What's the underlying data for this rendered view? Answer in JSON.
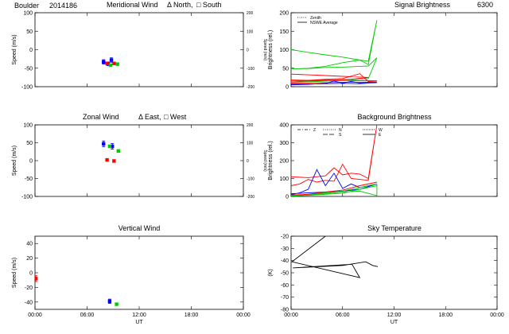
{
  "header": {
    "site": "Boulder",
    "date_code": "2014186"
  },
  "chart_data": [
    {
      "id": "meridional",
      "type": "scatter",
      "title": "Meridional Wind",
      "legend_items": [
        "Δ North,",
        "□ South"
      ],
      "ylabel": "Speed (m/s)",
      "ylim": [
        -100,
        100
      ],
      "yticks": [
        -100,
        -50,
        0,
        50,
        100
      ],
      "right_ylabel": "Speed (m/s)",
      "right_ticks": [
        "200",
        "100",
        "0",
        "-100",
        "-200"
      ],
      "series": [
        {
          "color": "#0000ff",
          "points": [
            {
              "x": 7.9,
              "y": -33,
              "err": 6
            },
            {
              "x": 8.4,
              "y": -38,
              "err": 5
            },
            {
              "x": 8.8,
              "y": -28,
              "err": 6
            }
          ]
        },
        {
          "color": "#ff0000",
          "points": [
            {
              "x": 8.3,
              "y": -37
            },
            {
              "x": 9.1,
              "y": -37
            }
          ]
        },
        {
          "color": "#00cc00",
          "points": [
            {
              "x": 8.7,
              "y": -42
            },
            {
              "x": 9.5,
              "y": -39
            }
          ]
        }
      ]
    },
    {
      "id": "zonal",
      "type": "scatter",
      "title": "Zonal Wind",
      "legend_items": [
        "Δ East,",
        "□ West"
      ],
      "ylabel": "Speed (m/s)",
      "ylim": [
        -100,
        100
      ],
      "yticks": [
        -100,
        -50,
        0,
        50,
        100
      ],
      "right_ylabel": "Speed (m/s)",
      "right_ticks": [
        "200",
        "100",
        "0",
        "-100",
        "-200"
      ],
      "series": [
        {
          "color": "#0000ff",
          "points": [
            {
              "x": 7.9,
              "y": 47,
              "err": 8
            },
            {
              "x": 8.9,
              "y": 40,
              "err": 8
            }
          ]
        },
        {
          "color": "#ff0000",
          "points": [
            {
              "x": 8.3,
              "y": 2
            },
            {
              "x": 9.1,
              "y": -1
            }
          ]
        },
        {
          "color": "#00cc00",
          "points": [
            {
              "x": 8.6,
              "y": 40
            },
            {
              "x": 9.6,
              "y": 27
            }
          ]
        }
      ]
    },
    {
      "id": "vertical",
      "type": "scatter",
      "title": "Vertical Wind",
      "ylabel": "Speed (m/s)",
      "ylim": [
        -50,
        50
      ],
      "yticks": [
        -40,
        -20,
        0,
        20,
        40
      ],
      "xlabel": "UT",
      "xticks": [
        "00:00",
        "06:00",
        "12:00",
        "18:00",
        "00:00"
      ],
      "series": [
        {
          "color": "#ff0000",
          "points": [
            {
              "x": 0.1,
              "y": -8,
              "err": 4
            }
          ]
        },
        {
          "color": "#0000ff",
          "points": [
            {
              "x": 8.6,
              "y": -39,
              "err": 3
            }
          ]
        },
        {
          "color": "#00cc00",
          "points": [
            {
              "x": 9.4,
              "y": -43
            }
          ]
        }
      ]
    },
    {
      "id": "signal",
      "type": "line",
      "title": "Signal Brightness",
      "title_right": "6300",
      "ylabel": "Brightness (rel.)",
      "ylim": [
        0,
        200
      ],
      "yticks": [
        0,
        50,
        100,
        150,
        200
      ],
      "legend": [
        "Zenith",
        "NSWE Average"
      ],
      "series": [
        {
          "color": "#00cc00",
          "points": [
            [
              0,
              100
            ],
            [
              2,
              93
            ],
            [
              4,
              86
            ],
            [
              6,
              80
            ],
            [
              8,
              72
            ],
            [
              9,
              69
            ],
            [
              10,
              180
            ],
            [
              9,
              60
            ],
            [
              8,
              72
            ],
            [
              6,
              65
            ],
            [
              4,
              55
            ],
            [
              2,
              50
            ],
            [
              0,
              48
            ],
            [
              2,
              49
            ],
            [
              4,
              52
            ],
            [
              6,
              53
            ],
            [
              8,
              55
            ],
            [
              9,
              56
            ],
            [
              10,
              78
            ],
            [
              9,
              22
            ],
            [
              7,
              18
            ],
            [
              5,
              16
            ],
            [
              3,
              14
            ],
            [
              1,
              13
            ],
            [
              0,
              12
            ]
          ]
        },
        {
          "color": "#ff0000",
          "points": [
            [
              0,
              34
            ],
            [
              2,
              32
            ],
            [
              4,
              30
            ],
            [
              6,
              28
            ],
            [
              8,
              26
            ],
            [
              9,
              25
            ],
            [
              7,
              20
            ],
            [
              5,
              18
            ],
            [
              3,
              16
            ],
            [
              1,
              15
            ],
            [
              0,
              15
            ],
            [
              2,
              17
            ],
            [
              4,
              20
            ],
            [
              6,
              22
            ],
            [
              8,
              35
            ],
            [
              9,
              14
            ],
            [
              10,
              13
            ],
            [
              8,
              12
            ],
            [
              6,
              12
            ],
            [
              4,
              11
            ],
            [
              2,
              10
            ],
            [
              0,
              10
            ]
          ]
        },
        {
          "color": "#0000ff",
          "points": [
            [
              0,
              5
            ],
            [
              2,
              6
            ],
            [
              4,
              9
            ],
            [
              5,
              15
            ],
            [
              6,
              10
            ],
            [
              7,
              14
            ],
            [
              8,
              10
            ],
            [
              9,
              12
            ],
            [
              10,
              11
            ],
            [
              8,
              8
            ],
            [
              6,
              9
            ],
            [
              4,
              8
            ],
            [
              2,
              7
            ],
            [
              0,
              7
            ]
          ]
        },
        {
          "color": "#ff0000",
          "points": [
            [
              0,
              18
            ],
            [
              2,
              17
            ],
            [
              4,
              18
            ],
            [
              6,
              17
            ],
            [
              8,
              16
            ],
            [
              10,
              16
            ]
          ]
        }
      ]
    },
    {
      "id": "background",
      "type": "line",
      "title": "Background Brightness",
      "ylabel": "Brightness (rel.)",
      "ylim": [
        0,
        400
      ],
      "yticks": [
        0,
        100,
        200,
        300,
        400
      ],
      "legend": [
        "Z",
        "N",
        "S",
        "W",
        "E"
      ],
      "series": [
        {
          "color": "#ff0000",
          "points": [
            [
              0,
              110
            ],
            [
              2,
              105
            ],
            [
              4,
              115
            ],
            [
              5,
              160
            ],
            [
              6,
              120
            ],
            [
              7,
              130
            ],
            [
              8,
              125
            ],
            [
              9,
              100
            ],
            [
              10,
              400
            ],
            [
              9,
              90
            ],
            [
              8,
              95
            ],
            [
              7,
              100
            ],
            [
              6,
              180
            ],
            [
              5,
              85
            ],
            [
              4,
              90
            ],
            [
              3,
              80
            ],
            [
              2,
              95
            ],
            [
              1,
              70
            ],
            [
              0,
              60
            ]
          ]
        },
        {
          "color": "#0000ff",
          "points": [
            [
              0,
              10
            ],
            [
              1,
              20
            ],
            [
              2,
              40
            ],
            [
              3,
              150
            ],
            [
              4,
              60
            ],
            [
              5,
              130
            ],
            [
              6,
              45
            ],
            [
              7,
              70
            ],
            [
              8,
              50
            ],
            [
              9,
              60
            ],
            [
              10,
              70
            ],
            [
              8,
              40
            ],
            [
              6,
              30
            ],
            [
              4,
              25
            ],
            [
              2,
              20
            ],
            [
              0,
              15
            ]
          ]
        },
        {
          "color": "#00cc00",
          "points": [
            [
              0,
              5
            ],
            [
              2,
              10
            ],
            [
              4,
              20
            ],
            [
              6,
              30
            ],
            [
              8,
              50
            ],
            [
              10,
              70
            ],
            [
              10,
              5
            ],
            [
              8,
              30
            ],
            [
              6,
              25
            ],
            [
              4,
              15
            ],
            [
              2,
              8
            ],
            [
              0,
              3
            ]
          ]
        },
        {
          "color": "#00cc00",
          "points": [
            [
              0,
              2
            ],
            [
              2,
              6
            ],
            [
              4,
              12
            ],
            [
              6,
              18
            ],
            [
              8,
              40
            ],
            [
              10,
              60
            ]
          ]
        },
        {
          "color": "#ff0000",
          "points": [
            [
              0,
              8
            ],
            [
              2,
              12
            ],
            [
              4,
              25
            ],
            [
              6,
              35
            ],
            [
              8,
              60
            ],
            [
              10,
              80
            ]
          ]
        }
      ]
    },
    {
      "id": "sky",
      "type": "line",
      "title": "Sky Temperature",
      "ylabel": "(K)",
      "ylim": [
        -80,
        -20
      ],
      "yticks": [
        -80,
        -70,
        -60,
        -50,
        -40,
        -30,
        -20
      ],
      "xlabel": "UT",
      "xticks": [
        "00:00",
        "06:00",
        "12:00",
        "18:00",
        "00:00"
      ],
      "series": [
        {
          "color": "#000000",
          "points": [
            [
              4.0,
              -20
            ],
            [
              0.1,
              -41
            ],
            [
              8.0,
              -54
            ],
            [
              7.1,
              -43
            ],
            [
              0.2,
              -46
            ],
            [
              6.0,
              -44
            ],
            [
              8.7,
              -41
            ],
            [
              9.5,
              -44
            ],
            [
              10.1,
              -45
            ]
          ]
        }
      ]
    }
  ]
}
